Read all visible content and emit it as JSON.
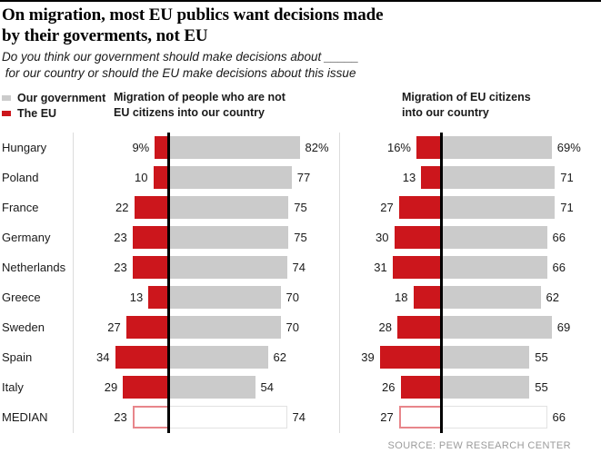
{
  "title": "On migration, most EU publics want decisions made\nby their goverments, not EU",
  "subtitle": "Do you think our government should make decisions about _____\n for our country or should the EU make decisions about this issue",
  "legend": {
    "government_label": "Our government",
    "eu_label": "The EU"
  },
  "colors": {
    "government_gray": "#cbcbcb",
    "eu_red": "#cc161c",
    "median_eu_outline": "#e8868b",
    "median_gov_outline": "#e2e2e2",
    "zero_line": "#000000",
    "boundary_line": "#dcdcdc",
    "source_text": "#9b9b9b"
  },
  "source": "SOURCE: PEW RESEARCH CENTER",
  "chart_data": {
    "type": "bar",
    "orientation": "horizontal-diverging",
    "categories": [
      "Hungary",
      "Poland",
      "France",
      "Germany",
      "Netherlands",
      "Greece",
      "Sweden",
      "Spain",
      "Italy",
      "MEDIAN"
    ],
    "legend_position": "top-left",
    "value_suffix_first_row": "%",
    "median_row_style": "outlined",
    "panels": [
      {
        "title": "Migration of people who are not\nEU citizens into our country",
        "series": [
          {
            "name": "The EU",
            "values": [
              9,
              10,
              22,
              23,
              23,
              13,
              27,
              34,
              29,
              23
            ]
          },
          {
            "name": "Our government",
            "values": [
              82,
              77,
              75,
              75,
              74,
              70,
              70,
              62,
              54,
              74
            ]
          }
        ]
      },
      {
        "title": "Migration of EU citizens\ninto our country",
        "series": [
          {
            "name": "The EU",
            "values": [
              16,
              13,
              27,
              30,
              31,
              18,
              28,
              39,
              26,
              27
            ]
          },
          {
            "name": "Our government",
            "values": [
              69,
              71,
              71,
              66,
              66,
              62,
              69,
              55,
              55,
              66
            ]
          }
        ]
      }
    ]
  }
}
